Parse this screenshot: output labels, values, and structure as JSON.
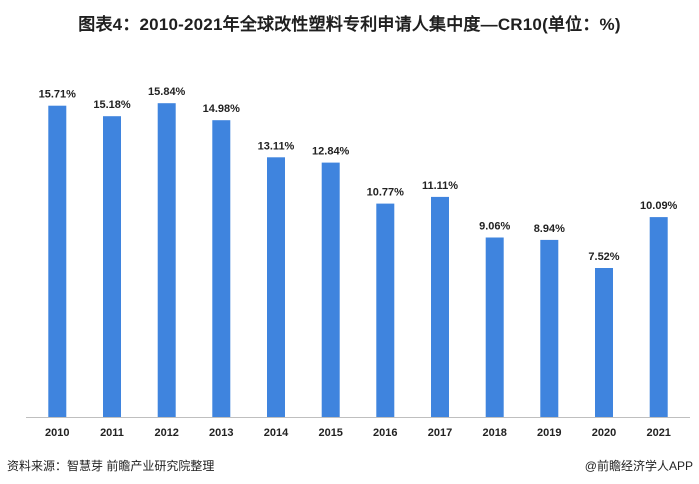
{
  "title": "图表4：2010-2021年全球改性塑料专利申请人集中度—CR10(单位：%)",
  "footer": {
    "source": "资料来源：智慧芽 前瞻产业研究院整理",
    "credit": "@前瞻经济学人APP"
  },
  "colors": {
    "bar": "#3f84de",
    "axis": "#bfbfbf"
  },
  "chart_data": {
    "type": "bar",
    "title": "图表4：2010-2021年全球改性塑料专利申请人集中度—CR10(单位：%)",
    "categories": [
      "2010",
      "2011",
      "2012",
      "2013",
      "2014",
      "2015",
      "2016",
      "2017",
      "2018",
      "2019",
      "2020",
      "2021"
    ],
    "values": [
      15.71,
      15.18,
      15.84,
      14.98,
      13.11,
      12.84,
      10.77,
      11.11,
      9.06,
      8.94,
      7.52,
      10.09
    ],
    "data_labels": [
      "15.71%",
      "15.18%",
      "15.84%",
      "14.98%",
      "13.11%",
      "12.84%",
      "10.77%",
      "11.11%",
      "9.06%",
      "8.94%",
      "7.52%",
      "10.09%"
    ],
    "xlabel": "",
    "ylabel": "",
    "ylim": [
      0,
      16
    ],
    "grid": false,
    "legend": "none"
  }
}
